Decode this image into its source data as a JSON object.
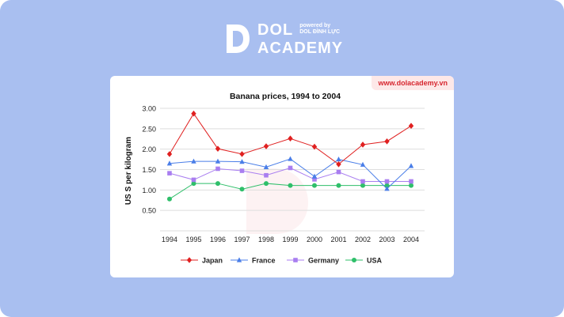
{
  "brand": {
    "name_line1": "DOL",
    "name_line2": "ACADEMY",
    "powered_by": "powered by",
    "powered_org": "DOL ĐÌNH LỰC",
    "url": "www.dolacademy.vn"
  },
  "colors": {
    "background": "#a9bff0",
    "japan": "#e02020",
    "france": "#4a7ee8",
    "germany": "#a97ef0",
    "usa": "#2fbf6a",
    "url_text": "#d7262f"
  },
  "chart_data": {
    "type": "line",
    "title": "Banana prices, 1994 to 2004",
    "xlabel": "",
    "ylabel": "US S per kilogram",
    "x": [
      "1994",
      "1995",
      "1996",
      "1997",
      "1998",
      "1999",
      "2000",
      "2001",
      "2002",
      "2003",
      "2004"
    ],
    "yticks": [
      "3.00",
      "2.50",
      "2.00",
      "1.50",
      "1.00",
      "0.50"
    ],
    "ylim": [
      0,
      3.0
    ],
    "grid": true,
    "legend_position": "bottom",
    "series": [
      {
        "name": "Japan",
        "marker": "diamond",
        "color": "#e02020",
        "values": [
          1.88,
          2.87,
          2.01,
          1.88,
          2.07,
          2.26,
          2.06,
          1.63,
          2.11,
          2.19,
          2.57
        ]
      },
      {
        "name": "France",
        "marker": "triangle",
        "color": "#4a7ee8",
        "values": [
          1.65,
          1.7,
          1.7,
          1.69,
          1.56,
          1.76,
          1.33,
          1.75,
          1.62,
          1.03,
          1.59
        ]
      },
      {
        "name": "Germany",
        "marker": "square",
        "color": "#a97ef0",
        "values": [
          1.41,
          1.25,
          1.52,
          1.47,
          1.36,
          1.54,
          1.26,
          1.44,
          1.21,
          1.21,
          1.21
        ]
      },
      {
        "name": "USA",
        "marker": "circle",
        "color": "#2fbf6a",
        "values": [
          0.78,
          1.16,
          1.16,
          1.02,
          1.16,
          1.11,
          1.11,
          1.11,
          1.11,
          1.11,
          1.11
        ]
      }
    ]
  }
}
